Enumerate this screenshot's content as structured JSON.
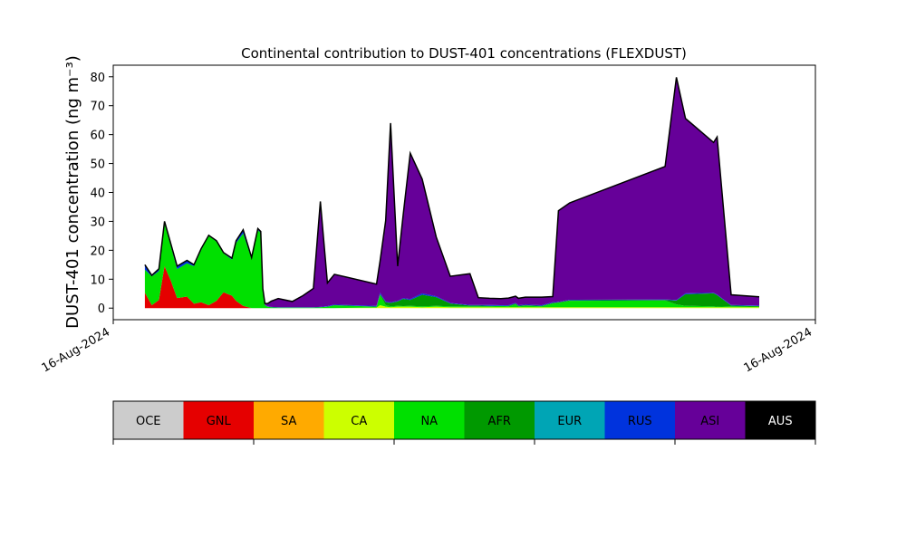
{
  "chart_data": {
    "type": "area",
    "stacked": true,
    "title": "Continental contribution to DUST-401 concentrations (FLEXDUST)",
    "ylabel": "DUST-401 concentration (ng m⁻³)",
    "xlabel": "",
    "x_ticks": [
      "16-Aug-2024",
      "16-Aug-2024"
    ],
    "x_range": [
      0,
      100
    ],
    "ylim": [
      -4,
      84
    ],
    "y_ticks": [
      0,
      10,
      20,
      30,
      40,
      50,
      60,
      70,
      80
    ],
    "grid": false,
    "x": [
      4.5,
      5.5,
      6.5,
      7.3,
      8.2,
      9.1,
      10.5,
      11.5,
      12.5,
      13.6,
      14.7,
      15.7,
      16.9,
      17.5,
      18.5,
      19.7,
      20.6,
      21.0,
      21.3,
      21.6,
      22.0,
      22.5,
      23.5,
      25.5,
      27.0,
      28.5,
      29.5,
      30.5,
      31.5,
      37.5,
      38.0,
      38.8,
      39.5,
      40.5,
      41.3,
      42.3,
      44.0,
      46.0,
      48.0,
      50.8,
      52.0,
      53.6,
      55.2,
      56.3,
      57.3,
      57.7,
      58.7,
      61.0,
      62.6,
      63.4,
      65.0,
      78.6,
      80.2,
      81.5,
      85.5,
      86.0,
      88.0,
      92.0
    ],
    "series": [
      {
        "name": "GNL",
        "color": "#e50000",
        "values": [
          5.3,
          1.0,
          2.8,
          14.5,
          9.5,
          3.5,
          4.0,
          1.5,
          2.0,
          1.0,
          2.5,
          5.5,
          4.3,
          2.5,
          0.8,
          0.0,
          0.0,
          0.0,
          0.0,
          0.0,
          0.0,
          0.0,
          0.0,
          0.0,
          0.0,
          0.0,
          0.0,
          0.0,
          0.0,
          0.0,
          0.0,
          0.0,
          0.0,
          0.0,
          0.0,
          0.0,
          0.0,
          0.0,
          0.0,
          0.0,
          0.0,
          0.0,
          0.0,
          0.0,
          0.0,
          0.0,
          0.0,
          0.0,
          0.0,
          0.0,
          0.0,
          0.0,
          0.0,
          0.0,
          0.0,
          0.0,
          0.0,
          0.0
        ]
      },
      {
        "name": "CA",
        "color": "#ccff00",
        "values": [
          0.0,
          0.0,
          0.0,
          0.0,
          0.0,
          0.0,
          0.0,
          0.0,
          0.0,
          0.0,
          0.0,
          0.0,
          0.0,
          0.0,
          0.0,
          0.0,
          0.0,
          0.0,
          0.0,
          0.0,
          0.0,
          0.0,
          0.0,
          0.0,
          0.0,
          0.0,
          0.0,
          0.0,
          0.0,
          0.2,
          1.0,
          0.5,
          0.3,
          0.5,
          0.5,
          0.5,
          0.3,
          0.5,
          0.3,
          0.3,
          0.3,
          0.3,
          0.3,
          0.3,
          0.3,
          0.3,
          0.3,
          0.3,
          0.3,
          0.3,
          0.3,
          0.3,
          0.3,
          0.3,
          0.3,
          0.3,
          0.3,
          0.3
        ]
      },
      {
        "name": "NA",
        "color": "#00e000",
        "values": [
          8.0,
          10.0,
          10.0,
          15.0,
          12.0,
          10.0,
          11.5,
          13.0,
          18.0,
          24.0,
          20.5,
          13.5,
          12.5,
          20.0,
          25.0,
          17.0,
          27.0,
          26.0,
          6.0,
          1.0,
          0.5,
          0.3,
          0.2,
          0.2,
          0.2,
          0.2,
          0.3,
          0.5,
          1.0,
          0.3,
          3.5,
          0.5,
          0.3,
          0.3,
          0.2,
          0.3,
          0.3,
          0.3,
          0.3,
          0.3,
          0.3,
          0.3,
          0.5,
          0.3,
          1.0,
          0.3,
          0.5,
          0.3,
          1.3,
          1.5,
          2.2,
          2.3,
          1.0,
          0.5,
          0.3,
          0.2,
          0.3,
          0.2
        ]
      },
      {
        "name": "AFR",
        "color": "#009900",
        "values": [
          0.0,
          0.0,
          0.0,
          0.0,
          0.0,
          0.0,
          0.0,
          0.0,
          0.0,
          0.0,
          0.0,
          0.0,
          0.0,
          0.0,
          0.0,
          0.0,
          0.0,
          0.0,
          0.0,
          0.0,
          0.0,
          0.0,
          0.0,
          0.0,
          0.0,
          0.0,
          0.0,
          0.0,
          0.0,
          0.0,
          0.3,
          1.0,
          1.2,
          1.5,
          2.5,
          2.0,
          4.0,
          3.0,
          1.0,
          0.3,
          0.3,
          0.2,
          0.0,
          0.2,
          0.3,
          0.2,
          0.2,
          0.2,
          0.2,
          0.2,
          0.2,
          0.2,
          1.3,
          4.0,
          4.5,
          4.0,
          0.3,
          0.2
        ]
      },
      {
        "name": "RUS",
        "color": "#0033dd",
        "values": [
          1.7,
          0.3,
          0.8,
          0.5,
          0.8,
          1.0,
          1.0,
          0.5,
          0.5,
          0.2,
          0.3,
          0.2,
          0.5,
          0.8,
          1.3,
          0.5,
          0.5,
          0.5,
          0.2,
          0.1,
          0.1,
          0.1,
          0.1,
          0.1,
          0.1,
          0.1,
          0.1,
          0.2,
          0.2,
          0.3,
          0.5,
          0.3,
          0.2,
          0.2,
          0.3,
          0.3,
          0.5,
          0.3,
          0.2,
          0.2,
          0.2,
          0.3,
          0.2,
          0.2,
          0.2,
          0.2,
          0.2,
          0.2,
          0.2,
          0.2,
          0.2,
          0.2,
          0.2,
          0.3,
          0.2,
          0.2,
          0.2,
          0.2
        ]
      },
      {
        "name": "ASI",
        "color": "#660099",
        "values": [
          0.0,
          0.0,
          0.0,
          0.0,
          0.0,
          0.0,
          0.0,
          0.0,
          0.0,
          0.0,
          0.0,
          0.0,
          0.0,
          0.0,
          0.0,
          0.0,
          0.0,
          0.0,
          0.5,
          0.5,
          1.0,
          2.0,
          3.0,
          2.0,
          4.0,
          6.5,
          36.5,
          8.0,
          10.5,
          7.5,
          11.0,
          28.0,
          62.0,
          12.0,
          29.0,
          50.5,
          39.5,
          20.5,
          9.2,
          10.8,
          2.5,
          2.3,
          2.3,
          2.5,
          2.3,
          2.4,
          2.6,
          2.8,
          2.0,
          31.5,
          33.5,
          46.0,
          77.0,
          60.5,
          52.0,
          54.5,
          3.5,
          3.0
        ]
      }
    ],
    "legend": [
      "OCE",
      "GNL",
      "SA",
      "CA",
      "NA",
      "AFR",
      "EUR",
      "RUS",
      "ASI",
      "AUS"
    ],
    "legend_colors": [
      "#cccccc",
      "#e50000",
      "#ffaa00",
      "#ccff00",
      "#00e000",
      "#009900",
      "#00a5b5",
      "#0033dd",
      "#660099",
      "#000000"
    ],
    "legend_placement": "bottom"
  }
}
